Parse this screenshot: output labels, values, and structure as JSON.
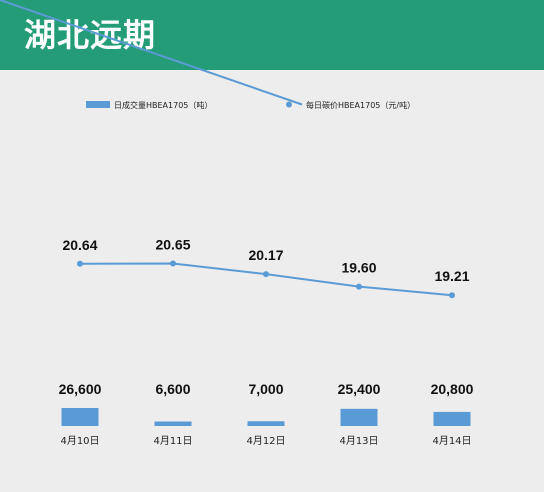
{
  "header": {
    "title": "湖北远期"
  },
  "colors": {
    "header_bg": "#259c78",
    "panel_bg": "#ededed",
    "bar": "#5b9bd5",
    "line": "#5b9bd5"
  },
  "chart_data": {
    "type": "bar+line",
    "categories": [
      "4月10日",
      "4月11日",
      "4月12日",
      "4月13日",
      "4月14日"
    ],
    "series": [
      {
        "name": "日成交量HBEA1705（吨）",
        "type": "bar",
        "values": [
          26600,
          6600,
          7000,
          25400,
          20800
        ],
        "labels": [
          "26,600",
          "6,600",
          "7,000",
          "25,400",
          "20,800"
        ]
      },
      {
        "name": "每日碳价HBEA1705（元/吨）",
        "type": "line",
        "values": [
          20.64,
          20.65,
          20.17,
          19.6,
          19.21
        ],
        "labels": [
          "20.64",
          "20.65",
          "20.17",
          "19.60",
          "19.21"
        ]
      }
    ],
    "legend_position": "top",
    "grid": false
  }
}
